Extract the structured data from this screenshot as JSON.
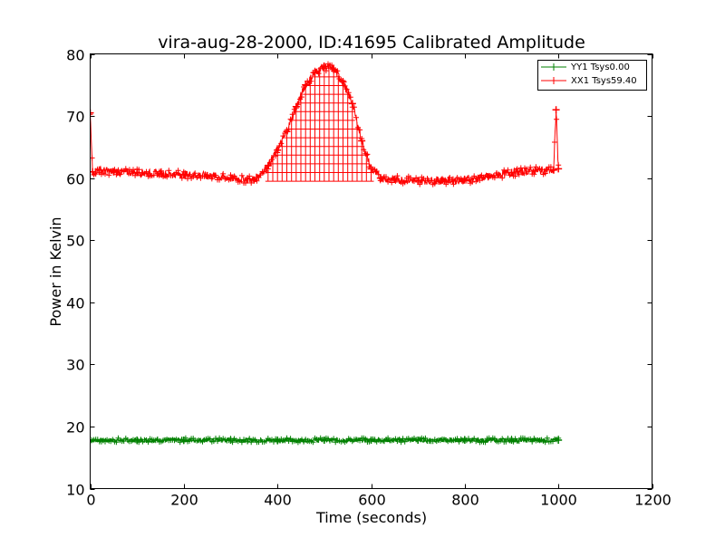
{
  "chart_data": {
    "type": "line",
    "title": "vira-aug-28-2000, ID:41695 Calibrated Amplitude",
    "xlabel": "Time (seconds)",
    "ylabel": "Power in Kelvin",
    "xlim": [
      0,
      1200
    ],
    "ylim": [
      10,
      80
    ],
    "xticks": [
      0,
      200,
      400,
      600,
      800,
      1000,
      1200
    ],
    "yticks": [
      10,
      20,
      30,
      40,
      50,
      60,
      70,
      80
    ],
    "grid": false,
    "legend_position": "top-right",
    "series": [
      {
        "name": "YY1 Tsys0.00",
        "color": "#008000",
        "marker": "+",
        "x": [
          0,
          100,
          200,
          300,
          400,
          500,
          600,
          700,
          800,
          900,
          1000
        ],
        "y": [
          17.8,
          17.8,
          17.8,
          17.8,
          17.8,
          17.8,
          17.8,
          17.8,
          17.8,
          17.8,
          17.8
        ]
      },
      {
        "name": "XX1 Tsys59.40",
        "color": "#ff0000",
        "marker": "+",
        "x": [
          0,
          5,
          20,
          50,
          100,
          150,
          200,
          250,
          300,
          350,
          380,
          400,
          420,
          440,
          460,
          480,
          500,
          520,
          540,
          560,
          580,
          600,
          620,
          650,
          700,
          750,
          800,
          850,
          900,
          950,
          990,
          995,
          1000
        ],
        "y": [
          70.5,
          61.0,
          61.3,
          61.0,
          60.9,
          60.7,
          60.6,
          60.4,
          60.0,
          59.7,
          62.0,
          64.5,
          67.5,
          71.5,
          75.0,
          77.0,
          78.0,
          77.5,
          75.5,
          72.0,
          66.0,
          61.5,
          60.0,
          59.8,
          59.6,
          59.6,
          59.7,
          60.2,
          60.9,
          61.2,
          61.3,
          71.0,
          61.5
        ]
      }
    ]
  }
}
